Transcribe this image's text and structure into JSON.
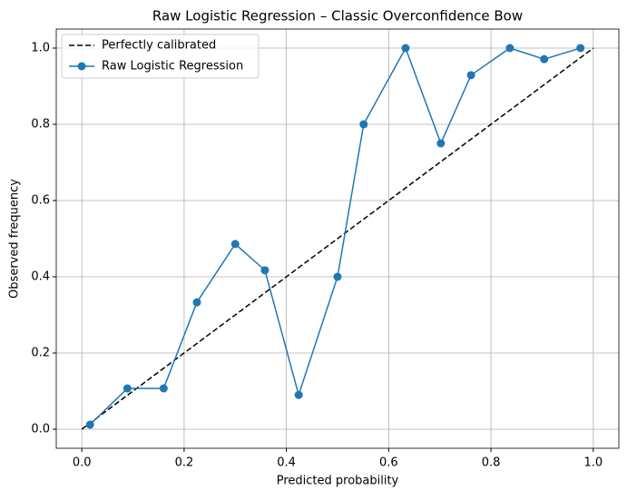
{
  "chart_data": {
    "type": "line",
    "title": "Raw Logistic Regression – Classic Overconfidence Bow",
    "x_label": "Predicted probability",
    "y_label": "Observed frequency",
    "xlim": [
      -0.05,
      1.05
    ],
    "ylim": [
      -0.05,
      1.05
    ],
    "xticks": [
      {
        "value": 0,
        "label": "0.0"
      },
      {
        "value": 0.2,
        "label": "0.2"
      },
      {
        "value": 0.4,
        "label": "0.4"
      },
      {
        "value": 0.6,
        "label": "0.6"
      },
      {
        "value": 0.8,
        "label": "0.8"
      },
      {
        "value": 1,
        "label": "1.0"
      }
    ],
    "yticks": [
      {
        "value": 0,
        "label": "0.0"
      },
      {
        "value": 0.2,
        "label": "0.2"
      },
      {
        "value": 0.4,
        "label": "0.4"
      },
      {
        "value": 0.6,
        "label": "0.6"
      },
      {
        "value": 0.8,
        "label": "0.8"
      },
      {
        "value": 1,
        "label": "1.0"
      }
    ],
    "grid": true,
    "legend": "upper left",
    "series": [
      {
        "name": "Perfectly calibrated",
        "color": "#000000",
        "dashed": true,
        "markers": false,
        "x": [
          0,
          1
        ],
        "values": [
          0,
          1
        ]
      },
      {
        "name": "Raw Logistic Regression",
        "color": "#1f77b4",
        "dashed": false,
        "markers": true,
        "x": [
          0.016,
          0.089,
          0.16,
          0.225,
          0.3,
          0.358,
          0.424,
          0.5,
          0.551,
          0.633,
          0.702,
          0.761,
          0.837,
          0.904,
          0.975
        ],
        "values": [
          0.012,
          0.107,
          0.107,
          0.333,
          0.486,
          0.417,
          0.09,
          0.4,
          0.8,
          1.0,
          0.75,
          0.929,
          1.0,
          0.971,
          1.0
        ]
      }
    ]
  }
}
